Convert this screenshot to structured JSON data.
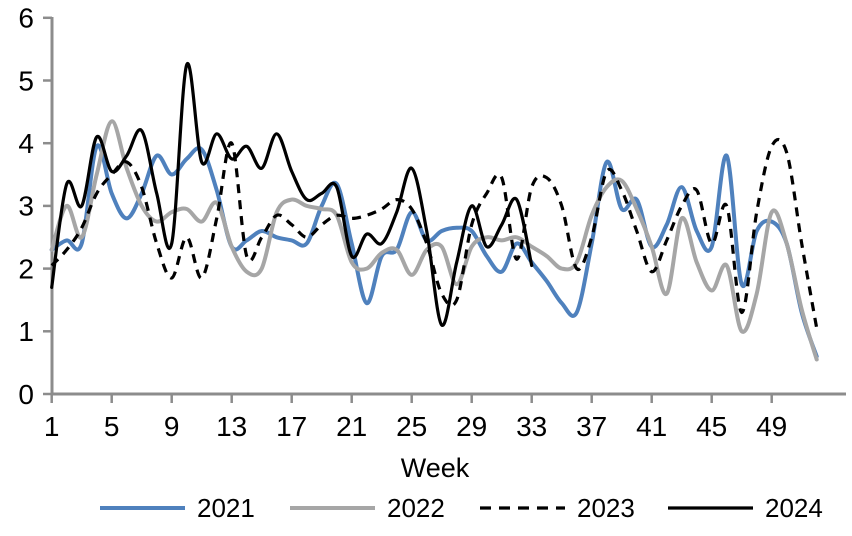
{
  "page": {
    "background": "#FFFFFF"
  },
  "chart_data": {
    "type": "line",
    "title": "",
    "xlabel": "Week",
    "ylabel": "",
    "grid": false,
    "legend_position": "bottom",
    "axis_color": "#8C8C8C",
    "text_color": "#000000",
    "xlim": [
      1,
      54
    ],
    "ylim": [
      0,
      6
    ],
    "x_ticks": [
      1,
      5,
      9,
      13,
      17,
      21,
      25,
      29,
      33,
      37,
      41,
      45,
      49
    ],
    "y_ticks": [
      0,
      1,
      2,
      3,
      4,
      5,
      6
    ],
    "x_unit": "week number",
    "weeks": [
      1,
      2,
      3,
      4,
      5,
      6,
      7,
      8,
      9,
      10,
      11,
      12,
      13,
      14,
      15,
      16,
      17,
      18,
      19,
      20,
      21,
      22,
      23,
      24,
      25,
      26,
      27,
      28,
      29,
      30,
      31,
      32,
      33,
      34,
      35,
      36,
      37,
      38,
      39,
      40,
      41,
      42,
      43,
      44,
      45,
      46,
      47,
      48,
      49,
      50,
      51,
      52
    ],
    "series": [
      {
        "name": "2021",
        "color": "#4F81BD",
        "style": "solid",
        "stroke_width": 4,
        "start_week": 1,
        "values": [
          2.3,
          2.45,
          2.4,
          3.95,
          3.2,
          2.8,
          3.2,
          3.8,
          3.5,
          3.75,
          3.9,
          3.25,
          2.35,
          2.45,
          2.6,
          2.5,
          2.45,
          2.4,
          3.0,
          3.35,
          2.4,
          1.45,
          2.2,
          2.3,
          2.9,
          2.45,
          2.6,
          2.65,
          2.6,
          2.2,
          1.95,
          2.4,
          2.1,
          1.8,
          1.45,
          1.3,
          2.4,
          3.7,
          2.95,
          3.1,
          2.35,
          2.7,
          3.3,
          2.6,
          2.35,
          3.8,
          1.75,
          2.6,
          2.75,
          2.4,
          1.3,
          0.6
        ]
      },
      {
        "name": "2022",
        "color": "#A6A6A6",
        "style": "solid",
        "stroke_width": 4,
        "start_week": 1,
        "values": [
          2.3,
          3.0,
          2.5,
          3.5,
          4.35,
          3.6,
          3.0,
          2.75,
          2.9,
          2.95,
          2.75,
          3.05,
          2.35,
          1.95,
          2.0,
          2.9,
          3.1,
          3.0,
          2.95,
          2.85,
          2.1,
          2.0,
          2.25,
          2.3,
          1.9,
          2.3,
          2.35,
          1.75,
          2.35,
          2.5,
          2.45,
          2.5,
          2.35,
          2.2,
          2.0,
          2.1,
          2.85,
          3.3,
          3.4,
          2.95,
          2.35,
          1.6,
          2.8,
          2.1,
          1.65,
          2.05,
          1.0,
          1.6,
          2.9,
          2.4,
          1.35,
          0.55
        ]
      },
      {
        "name": "2023",
        "color": "#000000",
        "style": "dashed",
        "stroke_width": 3.2,
        "start_week": 1,
        "values": [
          2.05,
          2.3,
          2.65,
          3.2,
          3.5,
          3.7,
          3.3,
          2.4,
          1.85,
          2.5,
          1.85,
          2.8,
          4.0,
          2.2,
          2.5,
          2.85,
          2.7,
          2.5,
          2.7,
          2.85,
          2.8,
          2.85,
          2.95,
          3.1,
          2.95,
          2.4,
          1.6,
          1.5,
          2.7,
          3.2,
          3.45,
          2.15,
          3.3,
          3.45,
          3.0,
          2.0,
          2.5,
          3.55,
          3.25,
          2.6,
          1.95,
          2.45,
          3.0,
          3.25,
          2.4,
          3.0,
          1.3,
          2.9,
          3.95,
          3.85,
          2.4,
          1.05
        ]
      },
      {
        "name": "2024",
        "color": "#000000",
        "style": "solid",
        "stroke_width": 3.2,
        "start_week": 1,
        "values": [
          1.7,
          3.35,
          3.0,
          4.1,
          3.55,
          3.8,
          4.2,
          3.2,
          2.4,
          5.25,
          3.7,
          4.15,
          3.75,
          3.95,
          3.6,
          4.15,
          3.55,
          3.1,
          3.2,
          3.3,
          2.2,
          2.55,
          2.4,
          2.9,
          3.6,
          2.6,
          1.1,
          2.1,
          3.0,
          2.35,
          2.7,
          3.1,
          2.05
        ]
      }
    ]
  }
}
